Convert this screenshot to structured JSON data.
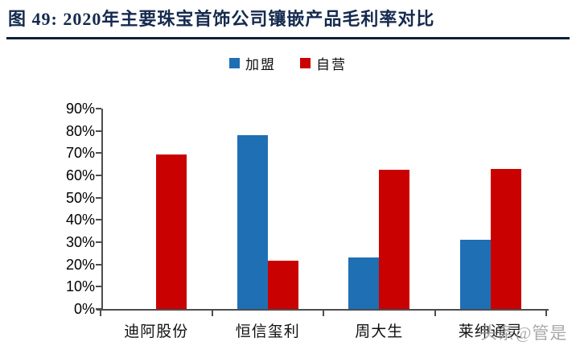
{
  "title": "图 49: 2020年主要珠宝首饰公司镶嵌产品毛利率对比",
  "watermark": "头条@管是",
  "colors": {
    "franchise_blue": "#1F6FB4",
    "self_red": "#CA0101",
    "title_navy": "#152A4E",
    "rule_navy": "#0D1F3C",
    "axis_gray": "#4D4D4D",
    "watermark_gray": "#9B9B9B"
  },
  "legend": [
    {
      "label": "加盟",
      "color_key": "franchise_blue"
    },
    {
      "label": "自营",
      "color_key": "self_red"
    }
  ],
  "chart_data": {
    "type": "bar",
    "title": "2020年主要珠宝首饰公司镶嵌产品毛利率对比",
    "categories": [
      "迪阿股份",
      "恒信玺利",
      "周大生",
      "莱绅通灵"
    ],
    "series": [
      {
        "name": "加盟",
        "color_key": "franchise_blue",
        "values": [
          null,
          78.1,
          23.0,
          31.0
        ]
      },
      {
        "name": "自营",
        "color_key": "self_red",
        "values": [
          69.4,
          21.7,
          62.5,
          62.9
        ]
      }
    ],
    "xlabel": "",
    "ylabel": "",
    "ylim": [
      0,
      90
    ],
    "ytick_step": 10,
    "ytick_labels": [
      "0%",
      "10%",
      "20%",
      "30%",
      "40%",
      "50%",
      "60%",
      "70%",
      "80%",
      "90%"
    ],
    "grid": false,
    "legend_position": "top-center",
    "unit": "percent"
  }
}
